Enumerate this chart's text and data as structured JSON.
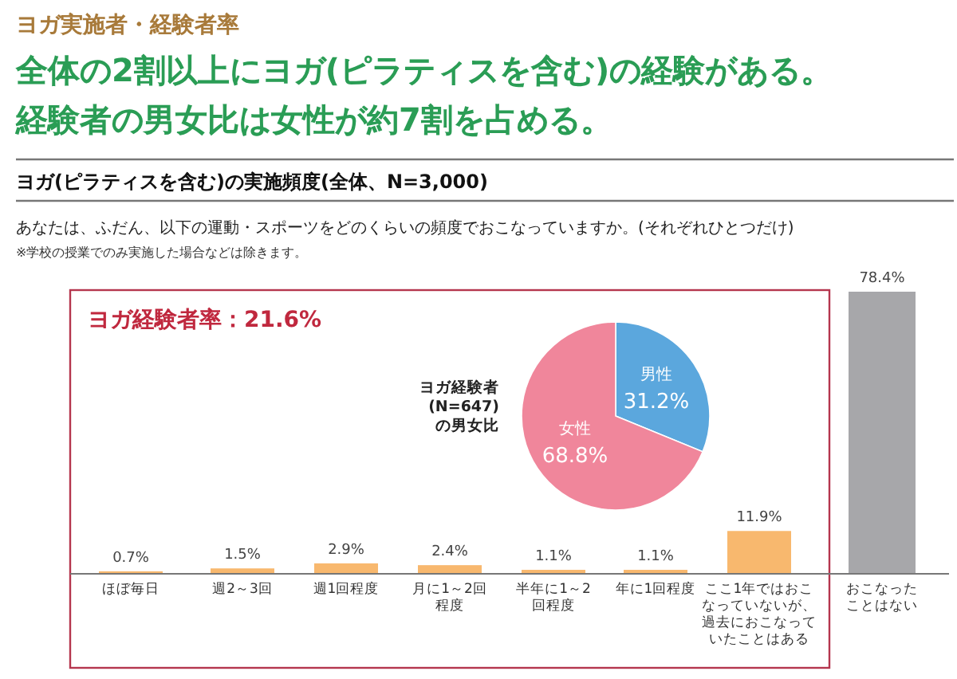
{
  "chart_data": [
    {
      "type": "bar",
      "title": "ヨガ(ピラティスを含む)の実施頻度(全体、N=3,000)",
      "subtitle": "あなたは、ふだん、以下の運動・スポーツをどのくらいの頻度でおこなっていますか。(それぞれひとつだけ)",
      "annotations": [
        "ヨガ実施者・経験者率",
        "全体の2割以上にヨガ(ピラティスを含む)の経験がある。",
        "経験者の男女比は女性が約7割を占める。",
        "※学校の授業でのみ実施した場合などは除きます。",
        "ヨガ経験者率：21.6%",
        "ヨガ経験者(N=647)の男女比"
      ],
      "categories": [
        "ほぼ毎日",
        "週2～3回",
        "週1回程度",
        "月に1～2回程度",
        "半年に1～2回程度",
        "年に1回程度",
        "ここ1年ではおこなっていないが、過去におこなっていたことはある",
        "おこなったことはない"
      ],
      "values": [
        0.7,
        1.5,
        2.9,
        2.4,
        1.1,
        1.1,
        11.9,
        78.4
      ],
      "value_labels": [
        "0.7%",
        "1.5%",
        "2.9%",
        "2.4%",
        "1.1%",
        "1.1%",
        "11.9%",
        "78.4%"
      ],
      "colors": [
        "#f8b86e",
        "#f8b86e",
        "#f8b86e",
        "#f8b86e",
        "#f8b86e",
        "#f8b86e",
        "#f8b86e",
        "#a7a7aa"
      ]
    },
    {
      "type": "pie",
      "categories": [
        "男性",
        "女性"
      ],
      "values": [
        31.2,
        68.8
      ],
      "value_labels": [
        "31.2%",
        "68.8%"
      ],
      "colors": [
        "#5ba7dd",
        "#f0869b"
      ]
    }
  ]
}
